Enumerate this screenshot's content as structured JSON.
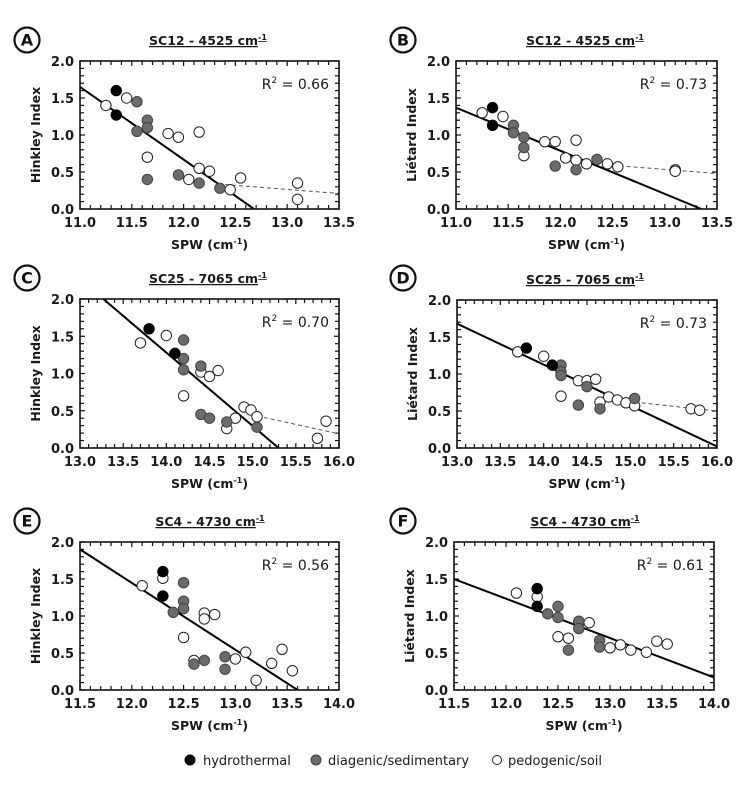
{
  "legend": {
    "items": [
      {
        "key": "hydrothermal",
        "label": "hydrothermal",
        "fill": "#000000"
      },
      {
        "key": "diagenetic",
        "label": "diagenic/sedimentary",
        "fill": "#6b6b6b"
      },
      {
        "key": "pedogenic",
        "label": "pedogenic/soil",
        "fill": "#ffffff"
      }
    ]
  },
  "chart_data": [
    {
      "panel": "A",
      "type": "scatter",
      "title": "SC12 - 4525 cm",
      "title_sup": "-1",
      "xlabel": "SPW (cm",
      "xlabel_sup": "-1",
      "xlabel_end": ")",
      "ylabel": "Hinkley Index",
      "xlim": [
        11.0,
        13.5
      ],
      "ylim": [
        0.0,
        2.0
      ],
      "xticks": [
        "11.0",
        "11.5",
        "12.0",
        "12.5",
        "13.0",
        "13.5"
      ],
      "yticks": [
        "0.0",
        "0.5",
        "1.0",
        "1.5",
        "2.0"
      ],
      "r2_label": "R",
      "r2_value": " = 0.66",
      "fit_line": [
        [
          11.0,
          1.65
        ],
        [
          12.68,
          0.0
        ]
      ],
      "dashed_line": [
        [
          12.4,
          0.33
        ],
        [
          13.5,
          0.21
        ]
      ],
      "series": {
        "hydrothermal": [
          [
            11.35,
            1.6
          ],
          [
            11.35,
            1.27
          ]
        ],
        "diagenetic": [
          [
            11.55,
            1.45
          ],
          [
            11.65,
            1.2
          ],
          [
            11.65,
            1.1
          ],
          [
            11.55,
            1.05
          ],
          [
            11.65,
            0.4
          ],
          [
            11.95,
            0.46
          ],
          [
            12.15,
            0.35
          ],
          [
            12.35,
            0.28
          ]
        ],
        "pedogenic": [
          [
            11.25,
            1.4
          ],
          [
            11.45,
            1.5
          ],
          [
            11.65,
            0.7
          ],
          [
            11.85,
            1.02
          ],
          [
            11.95,
            0.97
          ],
          [
            12.15,
            1.04
          ],
          [
            12.15,
            0.55
          ],
          [
            12.25,
            0.51
          ],
          [
            12.05,
            0.4
          ],
          [
            12.45,
            0.26
          ],
          [
            12.55,
            0.42
          ],
          [
            13.1,
            0.35
          ],
          [
            13.1,
            0.13
          ]
        ]
      }
    },
    {
      "panel": "B",
      "type": "scatter",
      "title": "SC12 - 4525 cm",
      "title_sup": "-1",
      "xlabel": "SPW (cm",
      "xlabel_sup": "-1",
      "xlabel_end": ")",
      "ylabel": "Liétard Index",
      "xlim": [
        11.0,
        13.5
      ],
      "ylim": [
        0.0,
        2.0
      ],
      "xticks": [
        "11.0",
        "11.5",
        "12.0",
        "12.5",
        "13.0",
        "13.5"
      ],
      "yticks": [
        "0.0",
        "0.5",
        "1.0",
        "1.5",
        "2.0"
      ],
      "r2_label": "R",
      "r2_value": " = 0.73",
      "fit_line": [
        [
          11.0,
          1.37
        ],
        [
          13.35,
          0.0
        ]
      ],
      "dashed_line": [
        [
          12.5,
          0.59
        ],
        [
          13.5,
          0.48
        ]
      ],
      "series": {
        "hydrothermal": [
          [
            11.35,
            1.37
          ],
          [
            11.35,
            1.13
          ]
        ],
        "diagenetic": [
          [
            11.55,
            1.13
          ],
          [
            11.55,
            1.03
          ],
          [
            11.65,
            0.97
          ],
          [
            11.65,
            0.83
          ],
          [
            11.95,
            0.58
          ],
          [
            12.15,
            0.53
          ],
          [
            12.35,
            0.67
          ]
        ],
        "pedogenic": [
          [
            11.25,
            1.3
          ],
          [
            11.45,
            1.25
          ],
          [
            11.65,
            0.72
          ],
          [
            11.85,
            0.91
          ],
          [
            11.95,
            0.91
          ],
          [
            12.15,
            0.93
          ],
          [
            12.05,
            0.69
          ],
          [
            12.15,
            0.66
          ],
          [
            12.25,
            0.61
          ],
          [
            12.45,
            0.61
          ],
          [
            12.55,
            0.57
          ],
          [
            13.1,
            0.53
          ],
          [
            13.1,
            0.51
          ]
        ]
      }
    },
    {
      "panel": "C",
      "type": "scatter",
      "title": "SC25 - 7065 cm",
      "title_sup": "-1",
      "xlabel": "SPW (cm",
      "xlabel_sup": "-1",
      "xlabel_end": ")",
      "ylabel": "Hinkley Index",
      "xlim": [
        13.0,
        16.0
      ],
      "ylim": [
        0.0,
        2.0
      ],
      "xticks": [
        "13.0",
        "13.5",
        "14.0",
        "14.5",
        "15.0",
        "15.5",
        "16.0"
      ],
      "yticks": [
        "0.0",
        "0.5",
        "1.0",
        "1.5",
        "2.0"
      ],
      "r2_label": "R",
      "r2_value": " = 0.70",
      "fit_line": [
        [
          13.27,
          2.0
        ],
        [
          15.3,
          0.0
        ]
      ],
      "dashed_line": [
        [
          15.05,
          0.43
        ],
        [
          16.0,
          0.19
        ]
      ],
      "series": {
        "hydrothermal": [
          [
            13.8,
            1.6
          ],
          [
            14.1,
            1.27
          ]
        ],
        "diagenetic": [
          [
            14.2,
            1.45
          ],
          [
            14.2,
            1.2
          ],
          [
            14.2,
            1.05
          ],
          [
            14.4,
            1.1
          ],
          [
            14.4,
            0.45
          ],
          [
            14.5,
            0.4
          ],
          [
            14.7,
            0.35
          ],
          [
            15.05,
            0.28
          ]
        ],
        "pedogenic": [
          [
            13.7,
            1.41
          ],
          [
            14.0,
            1.51
          ],
          [
            14.2,
            0.7
          ],
          [
            14.4,
            1.02
          ],
          [
            14.5,
            0.96
          ],
          [
            14.6,
            1.04
          ],
          [
            14.7,
            0.26
          ],
          [
            14.8,
            0.4
          ],
          [
            14.9,
            0.55
          ],
          [
            14.98,
            0.51
          ],
          [
            15.05,
            0.42
          ],
          [
            15.75,
            0.13
          ],
          [
            15.85,
            0.36
          ]
        ]
      }
    },
    {
      "panel": "D",
      "type": "scatter",
      "title": "SC25 - 7065 cm",
      "title_sup": "-1",
      "xlabel": "SPW (cm",
      "xlabel_sup": "-1",
      "xlabel_end": ")",
      "ylabel": "Liétard Index",
      "xlim": [
        13.0,
        16.0
      ],
      "ylim": [
        0.0,
        2.0
      ],
      "xticks": [
        "13.0",
        "13.5",
        "14.0",
        "14.5",
        "15.0",
        "15.5",
        "16.0"
      ],
      "yticks": [
        "0.0",
        "0.5",
        "1.0",
        "1.5",
        "2.0"
      ],
      "r2_label": "R",
      "r2_value": " = 0.73",
      "fit_line": [
        [
          13.0,
          1.68
        ],
        [
          16.0,
          0.02
        ]
      ],
      "dashed_line": [
        [
          15.05,
          0.62
        ],
        [
          16.0,
          0.5
        ]
      ],
      "series": {
        "hydrothermal": [
          [
            13.8,
            1.35
          ],
          [
            14.1,
            1.12
          ]
        ],
        "diagenetic": [
          [
            14.2,
            1.12
          ],
          [
            14.2,
            1.03
          ],
          [
            14.2,
            0.98
          ],
          [
            14.4,
            0.58
          ],
          [
            14.5,
            0.83
          ],
          [
            14.65,
            0.53
          ],
          [
            15.05,
            0.67
          ]
        ],
        "pedogenic": [
          [
            13.7,
            1.3
          ],
          [
            14.0,
            1.24
          ],
          [
            14.2,
            0.7
          ],
          [
            14.4,
            0.91
          ],
          [
            14.5,
            0.91
          ],
          [
            14.6,
            0.93
          ],
          [
            14.65,
            0.62
          ],
          [
            14.75,
            0.69
          ],
          [
            14.85,
            0.65
          ],
          [
            14.95,
            0.61
          ],
          [
            15.05,
            0.57
          ],
          [
            15.7,
            0.53
          ],
          [
            15.8,
            0.51
          ]
        ]
      }
    },
    {
      "panel": "E",
      "type": "scatter",
      "title": "SC4 - 4730 cm",
      "title_sup": "-1",
      "xlabel": "SPW (cm",
      "xlabel_sup": "-1",
      "xlabel_end": ")",
      "ylabel": "Hinkley Index",
      "xlim": [
        11.5,
        14.0
      ],
      "ylim": [
        0.0,
        2.0
      ],
      "xticks": [
        "11.5",
        "12.0",
        "12.5",
        "13.0",
        "13.5",
        "14.0"
      ],
      "yticks": [
        "0.0",
        "0.5",
        "1.0",
        "1.5",
        "2.0"
      ],
      "r2_label": "R",
      "r2_value": " = 0.56",
      "fit_line": [
        [
          11.5,
          1.9
        ],
        [
          13.6,
          0.0
        ]
      ],
      "dashed_line": null,
      "series": {
        "hydrothermal": [
          [
            12.3,
            1.6
          ],
          [
            12.3,
            1.27
          ]
        ],
        "diagenetic": [
          [
            12.4,
            1.05
          ],
          [
            12.5,
            1.45
          ],
          [
            12.5,
            1.2
          ],
          [
            12.5,
            1.1
          ],
          [
            12.6,
            0.35
          ],
          [
            12.7,
            0.4
          ],
          [
            12.9,
            0.45
          ],
          [
            12.9,
            0.28
          ]
        ],
        "pedogenic": [
          [
            12.1,
            1.41
          ],
          [
            12.3,
            1.51
          ],
          [
            12.5,
            0.71
          ],
          [
            12.6,
            0.4
          ],
          [
            12.7,
            1.04
          ],
          [
            12.7,
            0.96
          ],
          [
            12.8,
            1.02
          ],
          [
            13.0,
            0.42
          ],
          [
            13.1,
            0.51
          ],
          [
            13.2,
            0.13
          ],
          [
            13.35,
            0.36
          ],
          [
            13.45,
            0.55
          ],
          [
            13.55,
            0.26
          ]
        ]
      }
    },
    {
      "panel": "F",
      "type": "scatter",
      "title": "SC4 - 4730 cm",
      "title_sup": "-1",
      "xlabel": "SPW (cm",
      "xlabel_sup": "-1",
      "xlabel_end": ")",
      "ylabel": "Liétard Index",
      "xlim": [
        11.5,
        14.0
      ],
      "ylim": [
        0.0,
        2.0
      ],
      "xticks": [
        "11.5",
        "12.0",
        "12.5",
        "13.0",
        "13.5",
        "14.0"
      ],
      "yticks": [
        "0.0",
        "0.5",
        "1.0",
        "1.5",
        "2.0"
      ],
      "r2_label": "R",
      "r2_value": " = 0.61",
      "fit_line": [
        [
          11.5,
          1.5
        ],
        [
          14.0,
          0.17
        ]
      ],
      "dashed_line": null,
      "series": {
        "hydrothermal": [
          [
            12.3,
            1.37
          ],
          [
            12.3,
            1.13
          ]
        ],
        "diagenetic": [
          [
            12.4,
            1.03
          ],
          [
            12.5,
            1.13
          ],
          [
            12.5,
            0.98
          ],
          [
            12.6,
            0.54
          ],
          [
            12.7,
            0.93
          ],
          [
            12.7,
            0.83
          ],
          [
            12.9,
            0.67
          ],
          [
            12.9,
            0.58
          ]
        ],
        "pedogenic": [
          [
            12.1,
            1.31
          ],
          [
            12.3,
            1.26
          ],
          [
            12.5,
            0.72
          ],
          [
            12.6,
            0.7
          ],
          [
            12.7,
            0.91
          ],
          [
            12.8,
            0.91
          ],
          [
            13.0,
            0.57
          ],
          [
            13.1,
            0.61
          ],
          [
            13.2,
            0.54
          ],
          [
            13.35,
            0.51
          ],
          [
            13.45,
            0.66
          ],
          [
            13.55,
            0.62
          ]
        ]
      }
    }
  ]
}
